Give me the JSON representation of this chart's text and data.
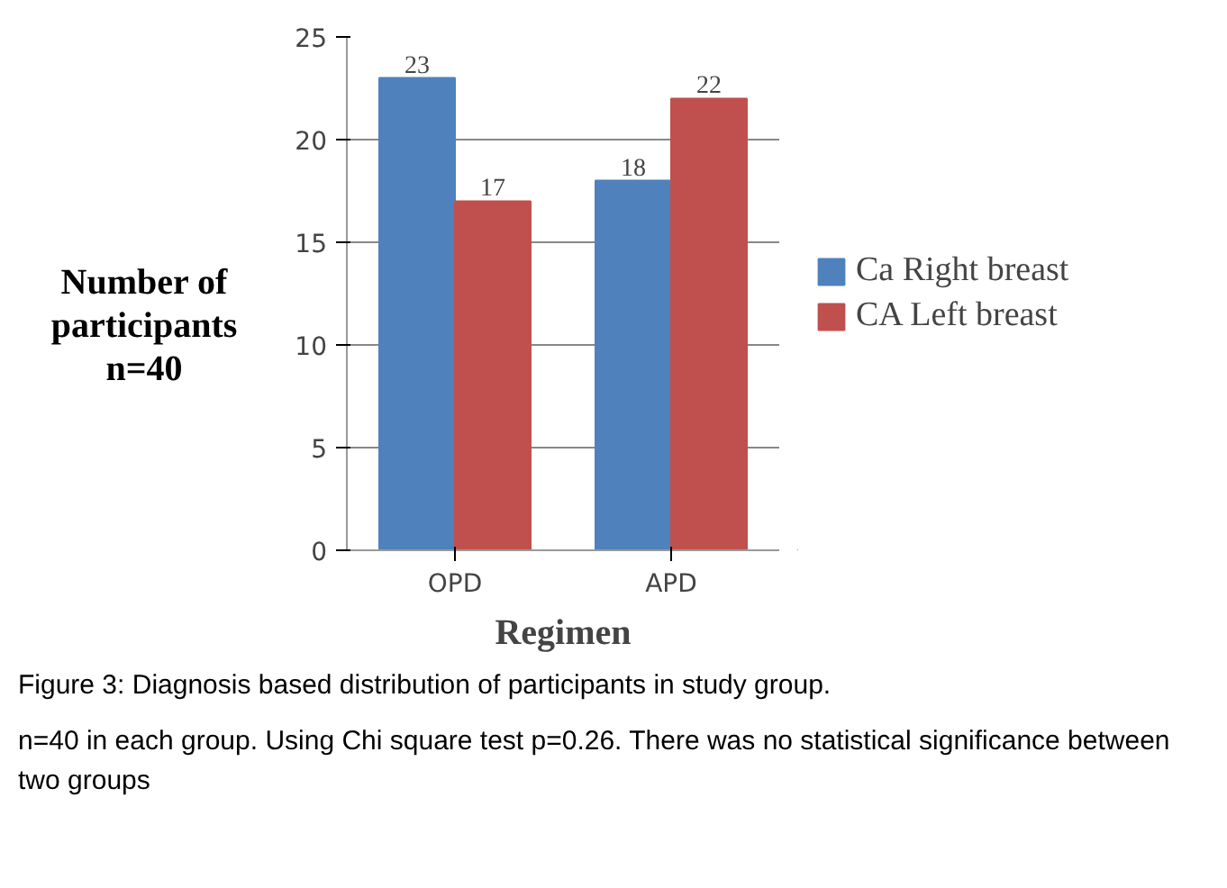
{
  "chart_data": {
    "type": "bar",
    "xlabel": "Regimen",
    "ylabel": "Number of\nparticipants\nn=40",
    "categories": [
      "OPD",
      "APD"
    ],
    "series": [
      {
        "name": "Ca Right breast",
        "color": "#4f81bd",
        "values": [
          23,
          18
        ]
      },
      {
        "name": "CA Left breast",
        "color": "#c0504d",
        "values": [
          17,
          22
        ]
      }
    ],
    "ylim": [
      0,
      25
    ],
    "yticks": [
      0,
      5,
      10,
      15,
      20,
      25
    ],
    "grid": "y",
    "legend": "right",
    "data_labels": true,
    "annotations": [
      "Figure 3: Diagnosis based distribution of participants in study group.",
      "n=40 in each group. Using Chi square test p=0.26. There was no statistical significance between two groups"
    ]
  }
}
